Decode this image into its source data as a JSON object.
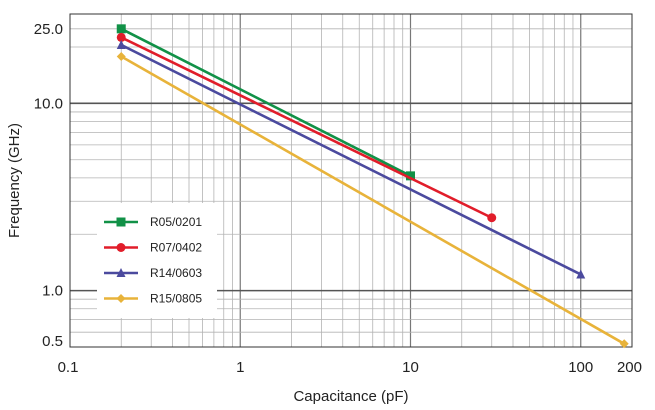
{
  "chart_data": {
    "type": "line",
    "xlabel": "Capacitance (pF)",
    "ylabel": "Frequency (GHz)",
    "x_scale": "log",
    "y_scale": "log",
    "xlim": [
      0.1,
      200
    ],
    "ylim": [
      0.5,
      30
    ],
    "x_ticks": [
      {
        "value": 0.1,
        "label": "0.1"
      },
      {
        "value": 1,
        "label": "1"
      },
      {
        "value": 10,
        "label": "10"
      },
      {
        "value": 100,
        "label": "100"
      },
      {
        "value": 200,
        "label": "200"
      }
    ],
    "y_ticks": [
      {
        "value": 0.5,
        "label": "0.5"
      },
      {
        "value": 1,
        "label": "1.0"
      },
      {
        "value": 10,
        "label": "10.0"
      },
      {
        "value": 25,
        "label": "25.0"
      }
    ],
    "grid": true,
    "legend_position": "left",
    "series": [
      {
        "name": "R05/0201",
        "color": "#119147",
        "marker": "square",
        "x": [
          0.2,
          10
        ],
        "y": [
          25,
          4.1
        ]
      },
      {
        "name": "R07/0402",
        "color": "#e11d2a",
        "marker": "circle",
        "x": [
          0.2,
          30
        ],
        "y": [
          22.5,
          2.45
        ]
      },
      {
        "name": "R14/0603",
        "color": "#4b4a9e",
        "marker": "triangle",
        "x": [
          0.2,
          100
        ],
        "y": [
          20.5,
          1.22
        ]
      },
      {
        "name": "R15/0805",
        "color": "#e8b33a",
        "marker": "diamond",
        "x": [
          0.2,
          180
        ],
        "y": [
          17.8,
          0.52
        ]
      }
    ]
  }
}
